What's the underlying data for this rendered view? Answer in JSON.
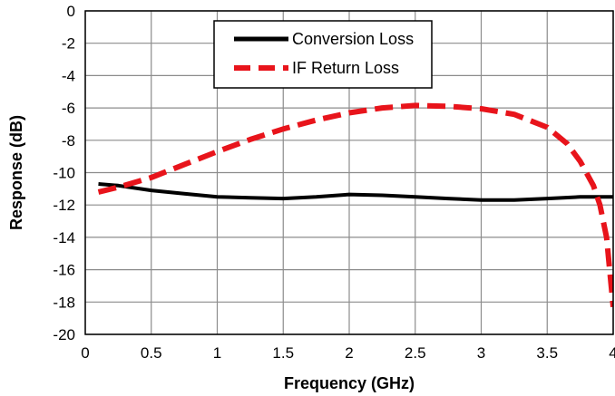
{
  "chart_data": {
    "type": "line",
    "xlabel": "Frequency (GHz)",
    "ylabel": "Response (dB)",
    "xlim": [
      0,
      4
    ],
    "ylim": [
      -20,
      0
    ],
    "x_ticks": [
      0,
      0.5,
      1,
      1.5,
      2,
      2.5,
      3,
      3.5,
      4
    ],
    "y_ticks": [
      0,
      -2,
      -4,
      -6,
      -8,
      -10,
      -12,
      -14,
      -16,
      -18,
      -20
    ],
    "x_tick_labels": [
      "0",
      "0.5",
      "1",
      "1.5",
      "2",
      "2.5",
      "3",
      "3.5",
      "4"
    ],
    "y_tick_labels": [
      "0",
      "-2",
      "-4",
      "-6",
      "-8",
      "-10",
      "-12",
      "-14",
      "-16",
      "-18",
      "-20"
    ],
    "grid": true,
    "legend_position": "top-center",
    "series": [
      {
        "name": "Conversion Loss",
        "color": "#000000",
        "style": "solid",
        "x": [
          0.1,
          0.25,
          0.5,
          0.75,
          1.0,
          1.25,
          1.5,
          1.75,
          2.0,
          2.25,
          2.5,
          2.75,
          3.0,
          3.25,
          3.5,
          3.75,
          4.0
        ],
        "y": [
          -10.7,
          -10.8,
          -11.1,
          -11.3,
          -11.5,
          -11.55,
          -11.6,
          -11.5,
          -11.35,
          -11.4,
          -11.5,
          -11.6,
          -11.7,
          -11.7,
          -11.6,
          -11.5,
          -11.5
        ]
      },
      {
        "name": "IF Return Loss",
        "color": "#e8141b",
        "style": "dashed",
        "x": [
          0.1,
          0.25,
          0.5,
          0.75,
          1.0,
          1.25,
          1.5,
          1.75,
          2.0,
          2.25,
          2.5,
          2.75,
          3.0,
          3.25,
          3.5,
          3.65,
          3.75,
          3.85,
          3.9,
          3.95,
          4.0
        ],
        "y": [
          -11.2,
          -10.9,
          -10.3,
          -9.5,
          -8.7,
          -7.95,
          -7.3,
          -6.75,
          -6.3,
          -6.0,
          -5.85,
          -5.9,
          -6.05,
          -6.4,
          -7.2,
          -8.2,
          -9.3,
          -10.8,
          -12.0,
          -14.0,
          -18.3
        ]
      }
    ]
  }
}
